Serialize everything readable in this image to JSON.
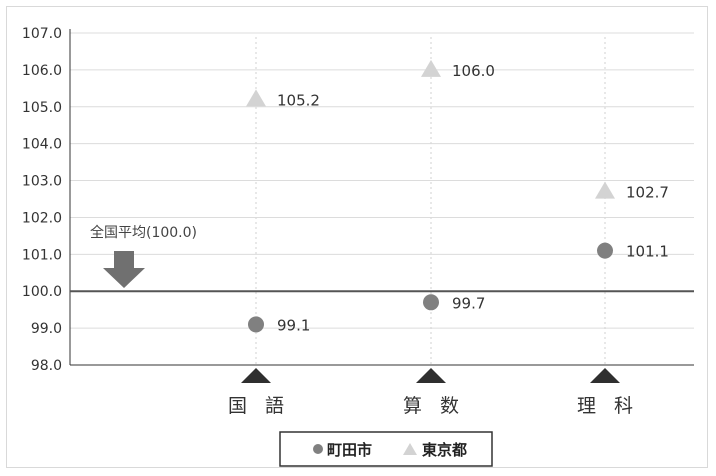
{
  "chart_data": {
    "type": "scatter",
    "categories": [
      "国 語",
      "算 数",
      "理 科"
    ],
    "series": [
      {
        "name": "町田市",
        "marker": "circle",
        "color": "#808080",
        "values": [
          99.1,
          99.7,
          101.1
        ],
        "labels": [
          "99.1",
          "99.7",
          "101.1"
        ]
      },
      {
        "name": "東京都",
        "marker": "triangle",
        "color": "#d3d3d3",
        "values": [
          105.2,
          106.0,
          102.7
        ],
        "labels": [
          "105.2",
          "106.0",
          "102.7"
        ]
      }
    ],
    "ylim": [
      98.0,
      107.0
    ],
    "yticks": [
      "107.0",
      "106.0",
      "105.0",
      "104.0",
      "103.0",
      "102.0",
      "101.0",
      "100.0",
      "99.0",
      "98.0"
    ],
    "reference_line": {
      "value": 100.0,
      "label": "全国平均(100.0)"
    },
    "grid": true,
    "legend_position": "bottom-center",
    "colors": {
      "axis": "#333333",
      "grid": "#dcdcdc",
      "reference": "#555555",
      "arrow": "#707070",
      "category_marker": "#2f2f2f"
    }
  }
}
